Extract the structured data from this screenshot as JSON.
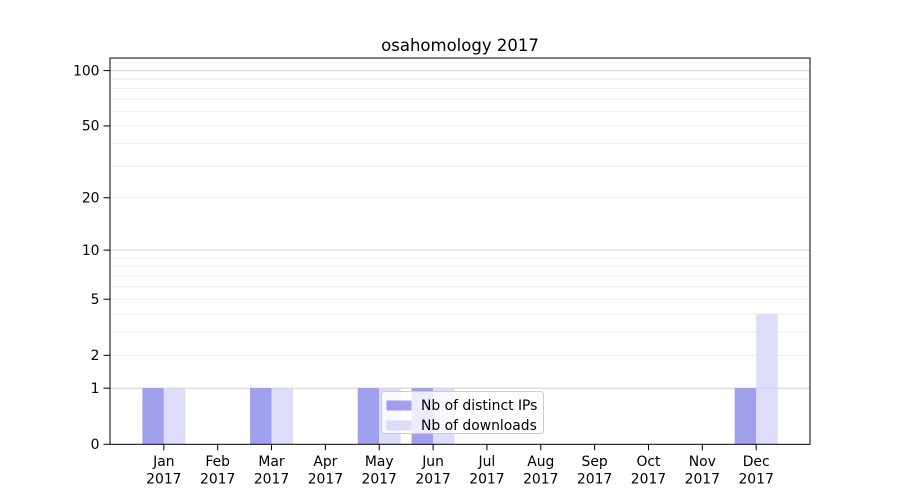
{
  "chart_data": {
    "type": "bar",
    "title": "osahomology 2017",
    "x": [
      "Jan",
      "Feb",
      "Mar",
      "Apr",
      "May",
      "Jun",
      "Jul",
      "Aug",
      "Sep",
      "Oct",
      "Nov",
      "Dec"
    ],
    "x_year": "2017",
    "series": [
      {
        "name": "Nb of distinct IPs",
        "color": "#8080ea",
        "values": [
          1,
          0,
          1,
          0,
          1,
          1,
          0,
          0,
          0,
          0,
          0,
          1
        ]
      },
      {
        "name": "Nb of downloads",
        "color": "#d2d2f8",
        "values": [
          1,
          0,
          1,
          0,
          1,
          1,
          0,
          0,
          0,
          0,
          0,
          4
        ]
      }
    ],
    "y_ticks": [
      0,
      1,
      2,
      5,
      10,
      20,
      50,
      100
    ],
    "y_scale": "log10(1+v)",
    "ylim": [
      0,
      117
    ],
    "grid": {
      "major": [
        1,
        10,
        100
      ],
      "minor": [
        2,
        3,
        4,
        5,
        6,
        7,
        8,
        9,
        20,
        30,
        40,
        50,
        60,
        70,
        80,
        90,
        110
      ]
    },
    "legend": {
      "entries": [
        "Nb of distinct IPs",
        "Nb of downloads"
      ],
      "position": "lower-center"
    },
    "colors": {
      "axis": "#000000",
      "tick_label": "#000000",
      "grid_major": "#d5d5d5",
      "grid_minor": "#eeeeee",
      "legend_border": "#cccccc",
      "legend_bg": "#ffffff"
    }
  }
}
